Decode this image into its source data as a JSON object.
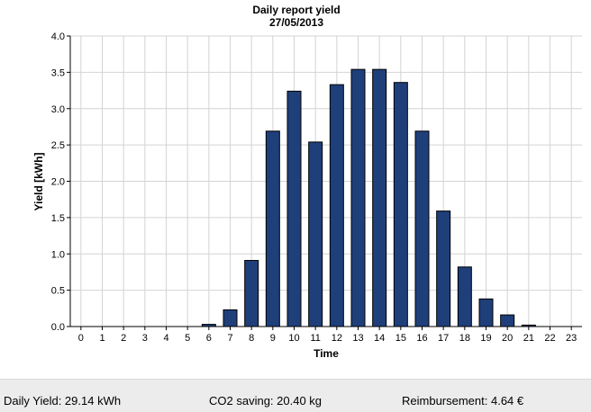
{
  "chart_data": {
    "type": "bar",
    "title": "Daily report yield",
    "subtitle": "27/05/2013",
    "xlabel": "Time",
    "ylabel": "Yield [kWh]",
    "ylim": [
      0,
      4.0
    ],
    "yticks": [
      "0.0",
      "0.5",
      "1.0",
      "1.5",
      "2.0",
      "2.5",
      "3.0",
      "3.5",
      "4.0"
    ],
    "grid": true,
    "categories": [
      "0",
      "1",
      "2",
      "3",
      "4",
      "5",
      "6",
      "7",
      "8",
      "9",
      "10",
      "11",
      "12",
      "13",
      "14",
      "15",
      "16",
      "17",
      "18",
      "19",
      "20",
      "21",
      "22",
      "23"
    ],
    "values": [
      0,
      0,
      0,
      0,
      0,
      0,
      0.03,
      0.23,
      0.91,
      2.69,
      3.24,
      2.54,
      3.33,
      3.54,
      3.54,
      3.36,
      2.69,
      1.59,
      0.82,
      0.38,
      0.16,
      0.02,
      0,
      0
    ],
    "bar_color": "#1f3f7a"
  },
  "footer": {
    "daily_yield": "Daily Yield: 29.14 kWh",
    "co2_saving": "CO2 saving: 20.40 kg",
    "reimbursement": "Reimbursement: 4.64 €"
  }
}
